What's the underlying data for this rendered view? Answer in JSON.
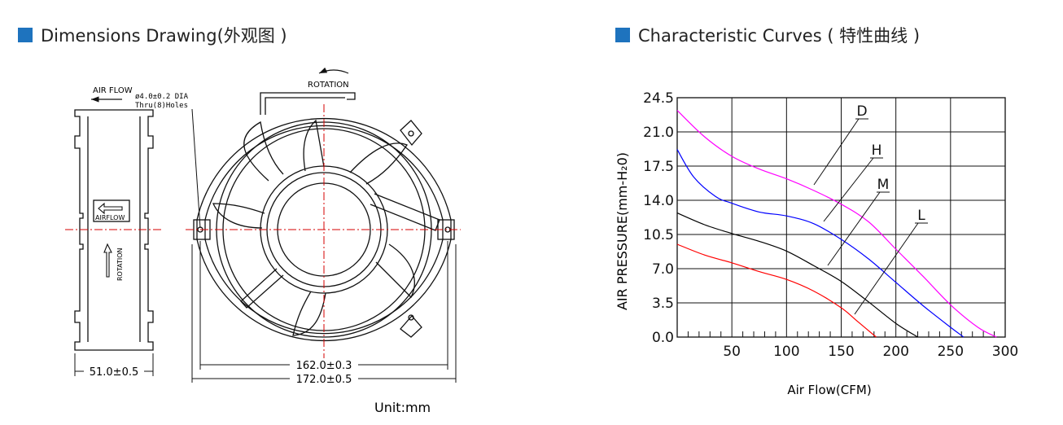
{
  "headers": {
    "dimensions": "Dimensions Drawing(外观图 )",
    "curves": "Characteristic Curves ( 特性曲线 )",
    "accent_color": "#1e73be"
  },
  "drawing": {
    "air_flow": "AIR FLOW",
    "hole_note_1": "ø4.0±0.2 DIA",
    "hole_note_2": "Thru(8)Holes",
    "rotation_top": "ROTATION",
    "airflow_label": "AIRFLOW",
    "rotation_side": "ROTATION",
    "dim_width": "51.0±0.5",
    "dim_inner": "162.0±0.3",
    "dim_outer": "172.0±0.5",
    "unit": "Unit:mm"
  },
  "chart_data": {
    "type": "line",
    "xlabel": "Air Flow(CFM)",
    "ylabel": "AIR PRESSURE(mm-H₂0)",
    "xlim": [
      0,
      300
    ],
    "ylim": [
      0,
      24.5
    ],
    "x_ticks": [
      50,
      100,
      150,
      200,
      250,
      300
    ],
    "y_ticks": [
      "0.0",
      "3.5",
      "7.0",
      "10.5",
      "14.0",
      "17.5",
      "21.0",
      "24.5"
    ],
    "grid": true,
    "series": [
      {
        "name": "D",
        "color": "#ff00ff",
        "points": [
          [
            0,
            23.2
          ],
          [
            25,
            20.5
          ],
          [
            50,
            18.5
          ],
          [
            75,
            17.2
          ],
          [
            100,
            16.2
          ],
          [
            125,
            15.0
          ],
          [
            150,
            13.6
          ],
          [
            175,
            11.8
          ],
          [
            200,
            9.0
          ],
          [
            225,
            6.2
          ],
          [
            250,
            3.3
          ],
          [
            275,
            1.0
          ],
          [
            292,
            0
          ]
        ]
      },
      {
        "name": "H",
        "color": "#0000ff",
        "points": [
          [
            0,
            19.2
          ],
          [
            15,
            16.4
          ],
          [
            35,
            14.4
          ],
          [
            50,
            13.7
          ],
          [
            75,
            12.8
          ],
          [
            100,
            12.4
          ],
          [
            125,
            11.6
          ],
          [
            150,
            10.0
          ],
          [
            175,
            8.0
          ],
          [
            200,
            5.6
          ],
          [
            225,
            3.2
          ],
          [
            250,
            1.0
          ],
          [
            262,
            0
          ]
        ]
      },
      {
        "name": "M",
        "color": "#000000",
        "points": [
          [
            0,
            12.7
          ],
          [
            25,
            11.5
          ],
          [
            50,
            10.6
          ],
          [
            75,
            9.8
          ],
          [
            100,
            8.8
          ],
          [
            125,
            7.3
          ],
          [
            150,
            5.7
          ],
          [
            175,
            3.6
          ],
          [
            200,
            1.4
          ],
          [
            220,
            0
          ]
        ]
      },
      {
        "name": "L",
        "color": "#ff0000",
        "points": [
          [
            0,
            9.5
          ],
          [
            25,
            8.4
          ],
          [
            50,
            7.6
          ],
          [
            75,
            6.7
          ],
          [
            100,
            5.9
          ],
          [
            125,
            4.7
          ],
          [
            150,
            3.0
          ],
          [
            165,
            1.6
          ],
          [
            182,
            0
          ]
        ]
      }
    ],
    "annotations": [
      "D",
      "H",
      "M",
      "L"
    ]
  }
}
